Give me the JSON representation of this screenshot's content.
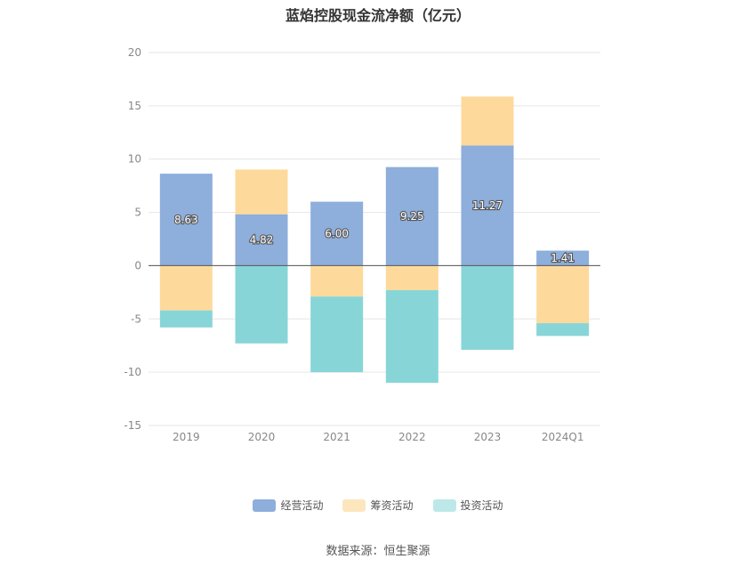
{
  "chart_data": {
    "type": "bar",
    "stacked": true,
    "title": "蓝焰控股现金流净额（亿元）",
    "categories": [
      "2019",
      "2020",
      "2021",
      "2022",
      "2023",
      "2024Q1"
    ],
    "series": [
      {
        "name": "经营活动",
        "color": "#8eaedb",
        "values": [
          8.63,
          4.82,
          6.0,
          9.25,
          11.27,
          1.41
        ],
        "labels": [
          "8.63",
          "4.82",
          "6.00",
          "9.25",
          "11.27",
          "1.41"
        ]
      },
      {
        "name": "筹资活动",
        "color": "#fdd99b",
        "values": [
          -4.2,
          4.2,
          -2.9,
          -2.3,
          4.6,
          -5.4
        ]
      },
      {
        "name": "投资活动",
        "color": "#88d5d8",
        "values": [
          -1.6,
          -7.3,
          -7.1,
          -8.7,
          -7.9,
          -1.2
        ]
      }
    ],
    "ylim": [
      -15,
      20
    ],
    "yticks": [
      "-15",
      "-10",
      "-5",
      "0",
      "5",
      "10",
      "15",
      "20"
    ],
    "grid": true,
    "legend_position": "bottom"
  },
  "source": "数据来源：恒生聚源"
}
